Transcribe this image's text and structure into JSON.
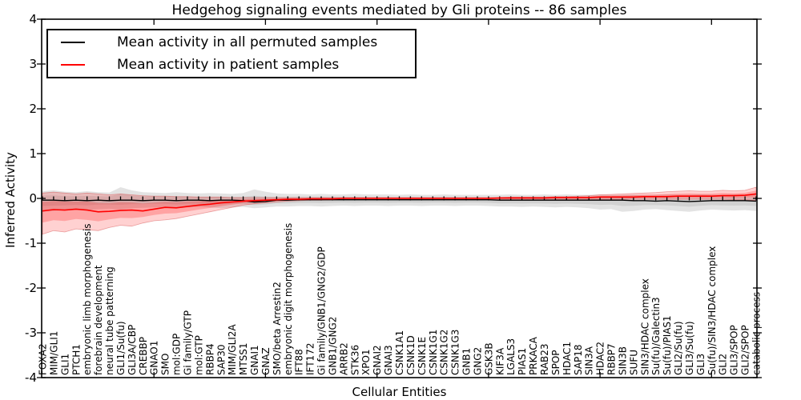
{
  "title": "Hedgehog signaling events mediated by Gli proteins -- 86 samples",
  "axes": {
    "y_label": "Inferred Activity",
    "x_label": "Cellular Entities",
    "y_tick_labels": [
      "4",
      "3",
      "2",
      "1",
      "0",
      "-1",
      "-2",
      "-3",
      "-4"
    ],
    "y_min": -4,
    "y_max": 4
  },
  "legend": {
    "items": [
      {
        "label": "Mean activity in all permuted samples",
        "color": "#000000"
      },
      {
        "label": "Mean activity in patient samples",
        "color": "#ff0000"
      }
    ],
    "position": "upper left"
  },
  "chart_data": {
    "type": "line",
    "title": "Hedgehog signaling events mediated by Gli proteins -- 86 samples",
    "xlabel": "Cellular Entities",
    "ylabel": "Inferred Activity",
    "ylim": [
      -4,
      4
    ],
    "grid": false,
    "legend_position": "upper left",
    "categories": [
      "FOXA2",
      "MIM/GLI1",
      "GLI1",
      "PTCH1",
      "embryonic limb morphogenesis",
      "forebrain development",
      "neural tube patterning",
      "GLI1/Su(fu)",
      "GLI3A/CBP",
      "CREBBP",
      "GNAO1",
      "SMO",
      "mol:GDP",
      "Gi family/GTP",
      "mol:GTP",
      "RBBP4",
      "SAP30",
      "MIM/GLI2A",
      "MTSS1",
      "GNAI1",
      "GNAZ",
      "SMO/beta Arrestin2",
      "embryonic digit morphogenesis",
      "IFT88",
      "IFT172",
      "Gi family/GNB1/GNG2/GDP",
      "GNB1/GNG2",
      "ARRB2",
      "STK36",
      "XPO1",
      "GNAI2",
      "GNAI3",
      "CSNK1A1",
      "CSNK1D",
      "CSNK1E",
      "CSNK1G1",
      "CSNK1G2",
      "CSNK1G3",
      "GNB1",
      "GNG2",
      "GSK3B",
      "KIF3A",
      "LGALS3",
      "PIAS1",
      "PRKACA",
      "RAB23",
      "SPOP",
      "HDAC1",
      "SAP18",
      "SIN3A",
      "HDAC2",
      "RBBP7",
      "SIN3B",
      "SUFU",
      "SIN3/HDAC complex",
      "Su(fu)/Galectin3",
      "Su(fu)/PIAS1",
      "GLI2/Su(fu)",
      "GLI3/Su(fu)",
      "GLI3",
      "Su(fu)/SIN3/HDAC complex",
      "GLI2",
      "GLI3/SPOP",
      "GLI2/SPOP",
      "catabolic process"
    ],
    "series": [
      {
        "name": "Mean activity in all permuted samples",
        "color": "#000000",
        "band_color": "#000000",
        "values": [
          -0.04,
          -0.04,
          -0.05,
          -0.04,
          -0.05,
          -0.04,
          -0.05,
          -0.04,
          -0.04,
          -0.05,
          -0.04,
          -0.04,
          -0.05,
          -0.04,
          -0.04,
          -0.05,
          -0.04,
          -0.04,
          -0.05,
          -0.08,
          -0.07,
          -0.04,
          -0.04,
          -0.03,
          -0.03,
          -0.03,
          -0.03,
          -0.03,
          -0.03,
          -0.03,
          -0.03,
          -0.03,
          -0.03,
          -0.03,
          -0.03,
          -0.03,
          -0.03,
          -0.03,
          -0.03,
          -0.03,
          -0.03,
          -0.04,
          -0.04,
          -0.04,
          -0.04,
          -0.04,
          -0.04,
          -0.04,
          -0.04,
          -0.04,
          -0.04,
          -0.04,
          -0.04,
          -0.05,
          -0.05,
          -0.06,
          -0.05,
          -0.06,
          -0.07,
          -0.06,
          -0.05,
          -0.05,
          -0.05,
          -0.05,
          -0.06
        ],
        "band_hi": [
          0.16,
          0.18,
          0.15,
          0.14,
          0.16,
          0.14,
          0.13,
          0.25,
          0.18,
          0.14,
          0.13,
          0.12,
          0.14,
          0.12,
          0.11,
          0.12,
          0.11,
          0.1,
          0.12,
          0.2,
          0.15,
          0.11,
          0.1,
          0.1,
          0.09,
          0.1,
          0.09,
          0.09,
          0.1,
          0.09,
          0.09,
          0.09,
          0.08,
          0.09,
          0.08,
          0.08,
          0.09,
          0.08,
          0.08,
          0.08,
          0.08,
          0.08,
          0.09,
          0.08,
          0.08,
          0.09,
          0.08,
          0.09,
          0.08,
          0.08,
          0.09,
          0.08,
          0.08,
          0.09,
          0.08,
          0.08,
          0.09,
          0.08,
          0.08,
          0.09,
          0.08,
          0.08,
          0.09,
          0.08,
          0.08
        ],
        "band_lo": [
          -0.3,
          -0.28,
          -0.26,
          -0.25,
          -0.26,
          -0.24,
          -0.23,
          -0.25,
          -0.22,
          -0.21,
          -0.2,
          -0.2,
          -0.22,
          -0.2,
          -0.19,
          -0.2,
          -0.22,
          -0.2,
          -0.19,
          -0.22,
          -0.2,
          -0.18,
          -0.18,
          -0.17,
          -0.17,
          -0.18,
          -0.17,
          -0.16,
          -0.17,
          -0.16,
          -0.16,
          -0.17,
          -0.16,
          -0.16,
          -0.17,
          -0.16,
          -0.16,
          -0.17,
          -0.16,
          -0.16,
          -0.17,
          -0.18,
          -0.18,
          -0.19,
          -0.18,
          -0.19,
          -0.2,
          -0.19,
          -0.2,
          -0.22,
          -0.25,
          -0.24,
          -0.3,
          -0.28,
          -0.25,
          -0.24,
          -0.26,
          -0.28,
          -0.3,
          -0.27,
          -0.25,
          -0.26,
          -0.27,
          -0.26,
          -0.28
        ]
      },
      {
        "name": "Mean activity in patient samples",
        "color": "#ff0000",
        "band_color": "#ff0000",
        "values": [
          -0.28,
          -0.25,
          -0.26,
          -0.24,
          -0.26,
          -0.3,
          -0.29,
          -0.27,
          -0.26,
          -0.28,
          -0.24,
          -0.2,
          -0.21,
          -0.18,
          -0.15,
          -0.13,
          -0.1,
          -0.08,
          -0.06,
          -0.05,
          -0.04,
          -0.03,
          -0.02,
          -0.02,
          -0.01,
          -0.01,
          -0.01,
          0.0,
          0.0,
          0.0,
          0.0,
          0.0,
          0.0,
          0.0,
          0.0,
          0.0,
          0.0,
          0.0,
          0.0,
          0.0,
          0.0,
          0.01,
          0.01,
          0.01,
          0.01,
          0.01,
          0.02,
          0.02,
          0.02,
          0.02,
          0.03,
          0.03,
          0.03,
          0.03,
          0.04,
          0.04,
          0.04,
          0.05,
          0.05,
          0.05,
          0.05,
          0.06,
          0.06,
          0.07,
          0.1
        ],
        "band_hi": [
          0.12,
          0.14,
          0.12,
          0.1,
          0.12,
          0.1,
          0.08,
          0.1,
          0.08,
          0.06,
          0.05,
          0.05,
          0.04,
          0.04,
          0.03,
          0.03,
          0.03,
          0.02,
          0.02,
          0.02,
          0.02,
          0.02,
          0.02,
          0.02,
          0.02,
          0.02,
          0.02,
          0.02,
          0.02,
          0.02,
          0.02,
          0.02,
          0.02,
          0.02,
          0.02,
          0.02,
          0.02,
          0.02,
          0.02,
          0.02,
          0.02,
          0.02,
          0.03,
          0.03,
          0.03,
          0.03,
          0.04,
          0.04,
          0.05,
          0.06,
          0.08,
          0.09,
          0.1,
          0.11,
          0.12,
          0.13,
          0.15,
          0.16,
          0.17,
          0.16,
          0.16,
          0.18,
          0.17,
          0.18,
          0.25
        ],
        "band_lo": [
          -0.8,
          -0.72,
          -0.75,
          -0.68,
          -0.7,
          -0.72,
          -0.65,
          -0.6,
          -0.62,
          -0.55,
          -0.5,
          -0.48,
          -0.45,
          -0.4,
          -0.35,
          -0.3,
          -0.25,
          -0.2,
          -0.15,
          -0.12,
          -0.1,
          -0.08,
          -0.06,
          -0.05,
          -0.04,
          -0.04,
          -0.03,
          -0.03,
          -0.03,
          -0.03,
          -0.03,
          -0.03,
          -0.03,
          -0.03,
          -0.03,
          -0.03,
          -0.03,
          -0.03,
          -0.03,
          -0.03,
          -0.03,
          -0.03,
          -0.03,
          -0.03,
          -0.02,
          -0.02,
          -0.02,
          -0.02,
          -0.02,
          -0.02,
          -0.02,
          -0.02,
          -0.02,
          -0.02,
          -0.02,
          -0.02,
          -0.02,
          -0.02,
          -0.02,
          -0.02,
          -0.02,
          -0.02,
          -0.03,
          -0.03,
          -0.05
        ]
      }
    ]
  }
}
